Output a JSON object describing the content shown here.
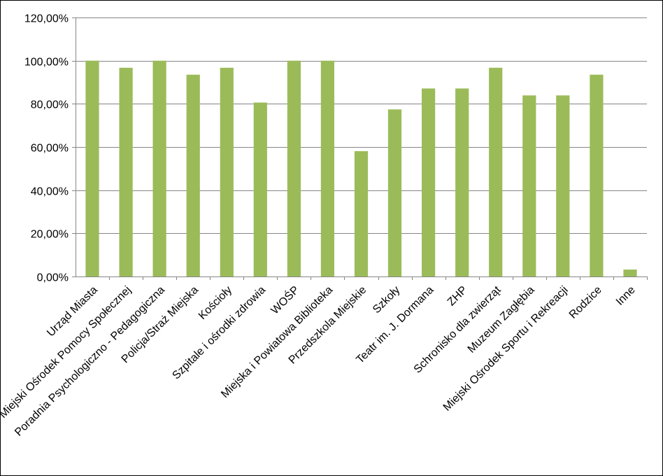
{
  "chart_data": {
    "type": "bar",
    "title": "",
    "xlabel": "",
    "ylabel": "",
    "ylim": [
      0,
      1.2
    ],
    "yticks": [
      0,
      0.2,
      0.4,
      0.6,
      0.8,
      1.0,
      1.2
    ],
    "ytick_labels": [
      "0,00%",
      "20,00%",
      "40,00%",
      "60,00%",
      "80,00%",
      "100,00%",
      "120,00%"
    ],
    "grid": true,
    "legend": "none",
    "bar_color": "#9bbb59",
    "categories": [
      "Urząd Miasta",
      "Miejski Ośrodek Pomocy Społecznej",
      "Poradnia Psychologiczno - Pedagogiczna",
      "Policja/Straż Miejska",
      "Kościoły",
      "Szpitale i ośrodki zdrowia",
      "WOŚP",
      "Miejska i Powiatowa Biblioteka",
      "Przedszkola Miejskie",
      "Szkoły",
      "Teatr im. J. Dormana",
      "ZHP",
      "Schronisko dla zwierząt",
      "Muzeum Zagłębia",
      "Miejski Ośrodek Sportu i Rekreacji",
      "Rodzice",
      "Inne"
    ],
    "values": [
      1.0,
      0.967,
      1.0,
      0.935,
      0.967,
      0.806,
      1.0,
      1.0,
      0.581,
      0.774,
      0.871,
      0.871,
      0.967,
      0.839,
      0.839,
      0.935,
      0.032
    ]
  }
}
